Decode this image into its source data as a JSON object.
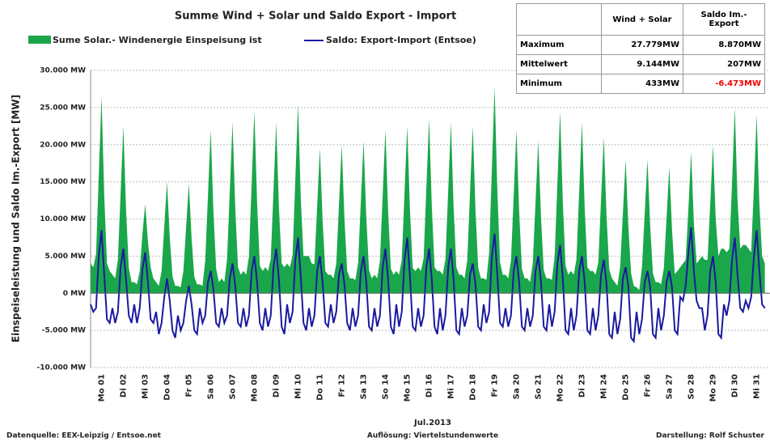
{
  "chart_data": {
    "type": "area",
    "title": "Summe Wind + Solar  und Saldo Export - Import",
    "ylabel": "Einspeiseleistung und Saldo Im.-Export   [MW]",
    "xlabel": "Jul.2013",
    "footer": [
      "Datenquelle: EEX-Leipzig  /  Entsoe.net",
      "Auflösung: Viertelstundenwerte",
      "Darstellung: Rolf Schuster"
    ],
    "ylim": [
      -10000,
      30000
    ],
    "yticks": [
      {
        "value": -10000,
        "label": "-10.000 MW"
      },
      {
        "value": -5000,
        "label": "-5.000 MW"
      },
      {
        "value": 0,
        "label": "0 MW"
      },
      {
        "value": 5000,
        "label": "5.000 MW"
      },
      {
        "value": 10000,
        "label": "10.000 MW"
      },
      {
        "value": 15000,
        "label": "15.000 MW"
      },
      {
        "value": 20000,
        "label": "20.000 MW"
      },
      {
        "value": 25000,
        "label": "25.000 MW"
      },
      {
        "value": 30000,
        "label": "30.000 MW"
      }
    ],
    "grid": true,
    "categories": [
      "Mo 01",
      "Di 02",
      "Mi 03",
      "Do 04",
      "Fr 05",
      "Sa 06",
      "So 07",
      "Mo 08",
      "Di 09",
      "Mi 10",
      "Do 11",
      "Fr 12",
      "Sa 13",
      "So 14",
      "Mo 15",
      "Di 16",
      "Mi 17",
      "Do 18",
      "Fr 19",
      "Sa 20",
      "So 21",
      "Mo 22",
      "Di 23",
      "Mi 24",
      "Do 25",
      "Fr 26",
      "Sa 27",
      "So 28",
      "Mo 29",
      "Di 30",
      "Mi 31"
    ],
    "series": [
      {
        "name": "Sume Solar.- Windenergie Einspeisung ist",
        "type": "area",
        "color": "#1aa64a",
        "values": [
          [
            4000,
            3500,
            5300,
            15900,
            26500,
            13200,
            4000,
            3000
          ],
          [
            2500,
            2000,
            4500,
            13500,
            22500,
            11200,
            3400,
            1500
          ],
          [
            1500,
            1200,
            3000,
            8000,
            12000,
            7000,
            3500,
            2000
          ],
          [
            1500,
            1000,
            3000,
            9000,
            15000,
            7500,
            2300,
            1000
          ],
          [
            1000,
            800,
            3000,
            8900,
            14800,
            7400,
            2200,
            1200
          ],
          [
            1200,
            1000,
            4400,
            13200,
            22000,
            11000,
            3300,
            1500
          ],
          [
            2000,
            1500,
            4600,
            13800,
            23000,
            11500,
            3500,
            2500
          ],
          [
            3000,
            2500,
            4900,
            14700,
            24500,
            12200,
            3700,
            3000
          ],
          [
            3500,
            3000,
            4600,
            13800,
            23000,
            11500,
            4000,
            3500
          ],
          [
            4000,
            3500,
            5100,
            15300,
            25500,
            12700,
            5000,
            5000
          ],
          [
            5000,
            4000,
            3900,
            11700,
            19500,
            9700,
            3000,
            2500
          ],
          [
            2500,
            2000,
            4000,
            12000,
            20000,
            10000,
            3000,
            2000
          ],
          [
            2000,
            1800,
            4100,
            12300,
            20500,
            10200,
            3100,
            2000
          ],
          [
            2500,
            2000,
            4400,
            13200,
            22000,
            11000,
            3300,
            2500
          ],
          [
            3000,
            2500,
            4500,
            13500,
            22500,
            11200,
            3400,
            3000
          ],
          [
            3500,
            3000,
            4700,
            14100,
            23500,
            11700,
            3500,
            3000
          ],
          [
            3000,
            2500,
            4600,
            13800,
            23000,
            11500,
            3500,
            2500
          ],
          [
            2500,
            2000,
            4500,
            13500,
            22500,
            11200,
            3400,
            2000
          ],
          [
            2000,
            1800,
            5500,
            16700,
            27779,
            13900,
            4200,
            2500
          ],
          [
            2500,
            2000,
            4400,
            13200,
            22000,
            11000,
            3300,
            2000
          ],
          [
            2000,
            1500,
            4100,
            12300,
            20500,
            10200,
            3100,
            2000
          ],
          [
            2000,
            1800,
            4900,
            14700,
            24500,
            12200,
            3700,
            2500
          ],
          [
            3000,
            2500,
            4600,
            13800,
            23000,
            11500,
            3500,
            3000
          ],
          [
            3000,
            2500,
            4200,
            12600,
            21000,
            10500,
            3200,
            2000
          ],
          [
            1500,
            1000,
            3600,
            10800,
            18000,
            9000,
            2700,
            1000
          ],
          [
            800,
            433,
            3600,
            10800,
            18000,
            9000,
            2700,
            1500
          ],
          [
            1500,
            1200,
            3400,
            10200,
            17000,
            8500,
            2600,
            3000
          ],
          [
            3500,
            4000,
            4500,
            11400,
            19000,
            9500,
            4000,
            4500
          ],
          [
            5000,
            4500,
            4500,
            12000,
            20000,
            10000,
            5000,
            6000
          ],
          [
            6000,
            5500,
            6000,
            15000,
            25000,
            12500,
            6000,
            6500
          ],
          [
            6500,
            6000,
            5500,
            14400,
            24000,
            12000,
            5000,
            4000
          ]
        ]
      },
      {
        "name": "Saldo: Export-Import (Entsoe)",
        "type": "line",
        "color": "#1a1aa0",
        "values": [
          [
            -1500,
            -2500,
            -2000,
            5000,
            8500,
            2500,
            -3500,
            -4000
          ],
          [
            -2000,
            -4000,
            -2500,
            3500,
            6000,
            1800,
            -3000,
            -4000
          ],
          [
            -1500,
            -4000,
            -2000,
            3200,
            5500,
            1600,
            -3500,
            -4000
          ],
          [
            -2500,
            -5500,
            -4000,
            -500,
            2000,
            -1000,
            -5000,
            -6000
          ],
          [
            -3000,
            -5000,
            -4000,
            -1000,
            1000,
            -1500,
            -5000,
            -5500
          ],
          [
            -2000,
            -4000,
            -3000,
            1500,
            3000,
            500,
            -4000,
            -4500
          ],
          [
            -2000,
            -4000,
            -3000,
            2000,
            4000,
            1000,
            -4000,
            -4500
          ],
          [
            -2000,
            -4500,
            -3000,
            3000,
            5000,
            1500,
            -4000,
            -5000
          ],
          [
            -2000,
            -4500,
            -3000,
            3500,
            6000,
            1800,
            -4500,
            -5500
          ],
          [
            -1500,
            -4000,
            -2500,
            4500,
            7500,
            2200,
            -4000,
            -5000
          ],
          [
            -2000,
            -4500,
            -3000,
            3000,
            5000,
            1500,
            -4000,
            -4500
          ],
          [
            -1500,
            -4000,
            -2500,
            2500,
            4000,
            1200,
            -4000,
            -5000
          ],
          [
            -2000,
            -4500,
            -3000,
            3000,
            5000,
            1500,
            -4500,
            -5000
          ],
          [
            -2000,
            -4500,
            -3000,
            3500,
            6000,
            1800,
            -4500,
            -5500
          ],
          [
            -1500,
            -4500,
            -2500,
            4500,
            7500,
            2200,
            -4500,
            -5000
          ],
          [
            -2000,
            -4500,
            -3000,
            3500,
            6000,
            1800,
            -4500,
            -5500
          ],
          [
            -2000,
            -5000,
            -3000,
            3500,
            6000,
            1800,
            -5000,
            -5500
          ],
          [
            -2000,
            -4500,
            -3000,
            2500,
            4000,
            1200,
            -4500,
            -5000
          ],
          [
            -1500,
            -4000,
            -2500,
            5000,
            8000,
            2500,
            -4000,
            -4500
          ],
          [
            -2000,
            -4500,
            -3000,
            3000,
            5000,
            1500,
            -4500,
            -5000
          ],
          [
            -2000,
            -4500,
            -3000,
            3000,
            5000,
            1500,
            -4500,
            -5000
          ],
          [
            -1500,
            -4500,
            -2500,
            4000,
            6500,
            2000,
            -5000,
            -5500
          ],
          [
            -2000,
            -5000,
            -3000,
            3000,
            5000,
            1500,
            -5000,
            -5500
          ],
          [
            -2000,
            -5000,
            -3000,
            2500,
            4500,
            1300,
            -5500,
            -6000
          ],
          [
            -2500,
            -5500,
            -3500,
            2000,
            3500,
            1000,
            -6000,
            -6473
          ],
          [
            -2500,
            -5500,
            -3500,
            1500,
            3000,
            800,
            -5500,
            -6000
          ],
          [
            -2000,
            -5000,
            -3000,
            1500,
            3000,
            800,
            -5000,
            -5500
          ],
          [
            -500,
            -1000,
            1000,
            5500,
            8870,
            3000,
            -1000,
            -2000
          ],
          [
            -2000,
            -5000,
            -3000,
            3000,
            5000,
            1500,
            -5500,
            -6000
          ],
          [
            -1500,
            -3000,
            -1000,
            4500,
            7500,
            2500,
            -2000,
            -2500
          ],
          [
            -1000,
            -2000,
            -500,
            5000,
            8500,
            3000,
            -1500,
            -2000
          ]
        ]
      }
    ],
    "table": {
      "header": [
        "Wind + Solar",
        "Saldo Im.-Export"
      ],
      "rows": [
        [
          "Maximum",
          "27.779MW",
          "8.870MW"
        ],
        [
          "Mittelwert",
          "9.144MW",
          "207MW"
        ],
        [
          "Minimum",
          "433MW",
          "-6.473MW"
        ]
      ]
    }
  }
}
